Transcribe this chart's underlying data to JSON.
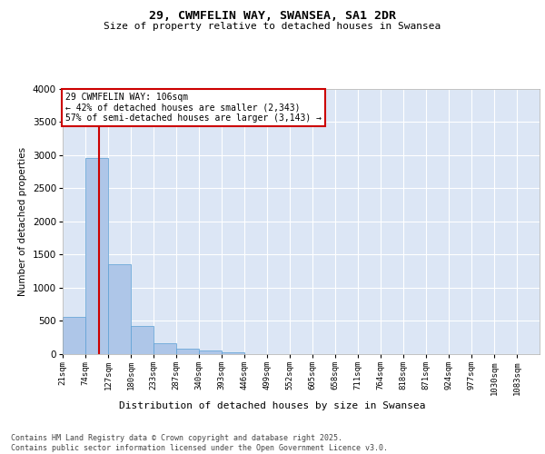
{
  "title1": "29, CWMFELIN WAY, SWANSEA, SA1 2DR",
  "title2": "Size of property relative to detached houses in Swansea",
  "xlabel": "Distribution of detached houses by size in Swansea",
  "ylabel": "Number of detached properties",
  "bar_labels": [
    "21sqm",
    "74sqm",
    "127sqm",
    "180sqm",
    "233sqm",
    "287sqm",
    "340sqm",
    "393sqm",
    "446sqm",
    "499sqm",
    "552sqm",
    "605sqm",
    "658sqm",
    "711sqm",
    "764sqm",
    "818sqm",
    "871sqm",
    "924sqm",
    "977sqm",
    "1030sqm",
    "1083sqm"
  ],
  "bar_values": [
    560,
    2950,
    1350,
    420,
    160,
    80,
    50,
    30,
    0,
    0,
    0,
    0,
    0,
    0,
    0,
    0,
    0,
    0,
    0,
    0,
    0
  ],
  "bar_color": "#aec6e8",
  "bar_edge_color": "#5a9fd4",
  "vline_color": "#cc0000",
  "annotation_text": "29 CWMFELIN WAY: 106sqm\n← 42% of detached houses are smaller (2,343)\n57% of semi-detached houses are larger (3,143) →",
  "annotation_box_color": "#ffffff",
  "annotation_box_edge": "#cc0000",
  "footnote": "Contains HM Land Registry data © Crown copyright and database right 2025.\nContains public sector information licensed under the Open Government Licence v3.0.",
  "ylim": [
    0,
    4000
  ],
  "yticks": [
    0,
    500,
    1000,
    1500,
    2000,
    2500,
    3000,
    3500,
    4000
  ],
  "background_color": "#ffffff",
  "plot_bg_color": "#dce6f5"
}
